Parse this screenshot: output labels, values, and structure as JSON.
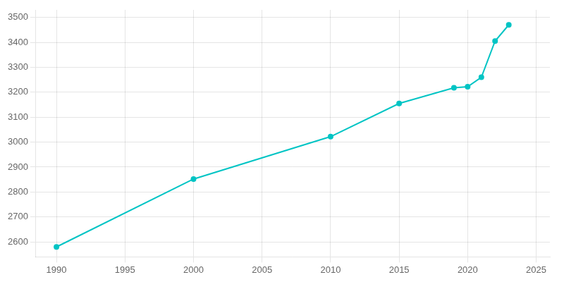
{
  "chart_data": {
    "type": "line",
    "x": [
      1990,
      2000,
      2010,
      2015,
      2019,
      2020,
      2021,
      2022,
      2023
    ],
    "values": [
      2580,
      2852,
      3022,
      3155,
      3218,
      3222,
      3260,
      3405,
      3470
    ],
    "color": "#00c4c4",
    "marker": "circle",
    "xlim": [
      1988.5,
      2026
    ],
    "ylim": [
      2540,
      3530
    ],
    "xticks": [
      1990,
      1995,
      2000,
      2005,
      2010,
      2015,
      2020,
      2025
    ],
    "yticks": [
      2600,
      2700,
      2800,
      2900,
      3000,
      3100,
      3200,
      3300,
      3400,
      3500
    ],
    "grid": true
  }
}
